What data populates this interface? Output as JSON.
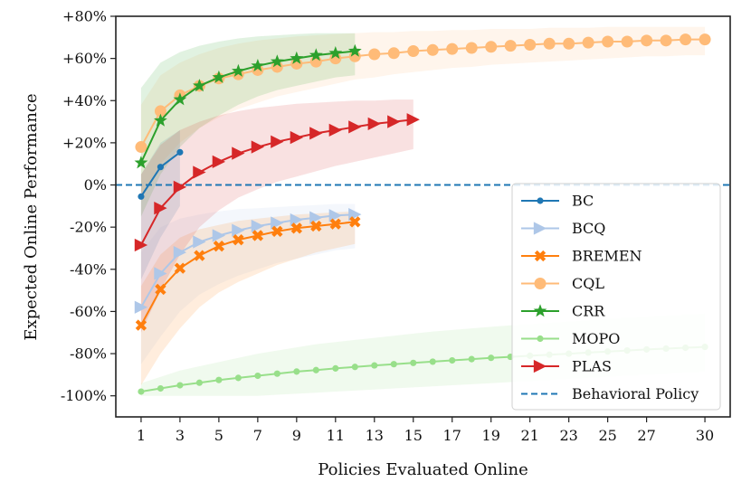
{
  "chart_data": {
    "type": "line",
    "xlabel": "Policies Evaluated Online",
    "ylabel": "Expected Online Performance",
    "xlim": [
      -0.3,
      31.3
    ],
    "ylim": [
      -110,
      80
    ],
    "xticks": [
      1,
      3,
      5,
      7,
      9,
      11,
      13,
      15,
      17,
      19,
      21,
      23,
      25,
      27,
      30
    ],
    "xtick_labels": [
      "1",
      "3",
      "5",
      "7",
      "9",
      "11",
      "13",
      "15",
      "17",
      "19",
      "21",
      "23",
      "25",
      "27",
      "30"
    ],
    "yticks": [
      -100,
      -80,
      -60,
      -40,
      -20,
      0,
      20,
      40,
      60,
      80
    ],
    "ytick_labels": [
      "-100%",
      "-80%",
      "-60%",
      "-40%",
      "-20%",
      "0%",
      "+20%",
      "+40%",
      "+60%",
      "+80%"
    ],
    "baseline": {
      "name": "Behavioral Policy",
      "value": 0,
      "color": "#1f77b4"
    },
    "legend_position": "lower-right",
    "series": [
      {
        "name": "BC",
        "color": "#1f77b4",
        "marker": "point",
        "x": [
          1,
          2,
          3
        ],
        "values": [
          -5.5,
          8.5,
          15.5
        ],
        "band_low": [
          -45,
          -25,
          -10
        ],
        "band_high": [
          5,
          20,
          26
        ]
      },
      {
        "name": "BCQ",
        "color": "#aec7e8",
        "marker": "triangle-right",
        "x": [
          1,
          2,
          3,
          4,
          5,
          6,
          7,
          8,
          9,
          10,
          11,
          12
        ],
        "values": [
          -58,
          -42,
          -32,
          -27,
          -24,
          -21.5,
          -19.5,
          -18,
          -16.5,
          -15.5,
          -14.5,
          -14
        ],
        "band_low": [
          -85,
          -72,
          -60,
          -52,
          -47,
          -43,
          -40,
          -37,
          -35,
          -33,
          -31,
          -30
        ],
        "band_high": [
          -32,
          -20,
          -16,
          -14,
          -12.5,
          -11.5,
          -11,
          -10.5,
          -10,
          -9.5,
          -9,
          -9
        ]
      },
      {
        "name": "BREMEN",
        "color": "#ff7f0e",
        "marker": "x-filled",
        "x": [
          1,
          2,
          3,
          4,
          5,
          6,
          7,
          8,
          9,
          10,
          11,
          12
        ],
        "values": [
          -66.5,
          -49.5,
          -39.5,
          -33.5,
          -29,
          -26,
          -24,
          -22,
          -20.5,
          -19.5,
          -18.5,
          -17.5
        ],
        "band_low": [
          -95,
          -80,
          -68,
          -58,
          -51,
          -46,
          -42,
          -38,
          -35,
          -32,
          -30,
          -28
        ],
        "band_high": [
          -48,
          -33,
          -25,
          -21,
          -19,
          -17,
          -16,
          -15,
          -14,
          -13.5,
          -13,
          -12.5
        ]
      },
      {
        "name": "CQL",
        "color": "#ffbb78",
        "marker": "circle",
        "x": [
          1,
          2,
          3,
          4,
          5,
          6,
          7,
          8,
          9,
          10,
          11,
          12,
          13,
          14,
          15,
          16,
          17,
          18,
          19,
          20,
          21,
          22,
          23,
          24,
          25,
          26,
          27,
          28,
          29,
          30
        ],
        "values": [
          18,
          35,
          42.5,
          47,
          50.5,
          52.5,
          54.5,
          56,
          57.5,
          58.5,
          60,
          61,
          62,
          62.5,
          63.5,
          64,
          64.5,
          65,
          65.5,
          66,
          66.5,
          67,
          67,
          67.5,
          68,
          68,
          68.5,
          68.5,
          69,
          69
        ],
        "band_low": [
          -5,
          10,
          20,
          27,
          32,
          36,
          39,
          42,
          44,
          46,
          48,
          50,
          51,
          52.5,
          53.5,
          54.5,
          55.5,
          56,
          57,
          57.5,
          58,
          58.5,
          59,
          59.5,
          60,
          60.5,
          61,
          61,
          61.5,
          61.5
        ],
        "band_high": [
          38,
          52,
          58,
          62,
          65,
          67,
          68.5,
          69.5,
          70.5,
          71,
          71.5,
          72,
          72.5,
          72.5,
          73,
          73,
          73.5,
          73.5,
          74,
          74,
          74,
          74.5,
          74.5,
          74.5,
          75,
          75,
          75,
          75,
          75,
          75
        ]
      },
      {
        "name": "CRR",
        "color": "#2ca02c",
        "marker": "star",
        "x": [
          1,
          2,
          3,
          4,
          5,
          6,
          7,
          8,
          9,
          10,
          11,
          12
        ],
        "values": [
          10.5,
          30.5,
          40.5,
          47,
          51,
          54,
          56.5,
          58.5,
          60,
          61.5,
          62.5,
          63.5
        ],
        "band_low": [
          -15,
          5,
          18,
          27,
          33,
          38,
          42,
          45,
          47,
          49,
          51,
          52
        ],
        "band_high": [
          46,
          58,
          63,
          66,
          68,
          69.5,
          70.5,
          71,
          71.5,
          72,
          72,
          72
        ]
      },
      {
        "name": "MOPO",
        "color": "#98df8a",
        "marker": "point",
        "x": [
          1,
          2,
          3,
          4,
          5,
          6,
          7,
          8,
          9,
          10,
          11,
          12,
          13,
          14,
          15,
          16,
          17,
          18,
          19,
          20,
          21,
          22,
          23,
          24,
          25,
          26,
          27,
          28,
          29,
          30
        ],
        "values": [
          -98,
          -96.5,
          -95,
          -93.8,
          -92.5,
          -91.5,
          -90.5,
          -89.5,
          -88.5,
          -87.8,
          -87,
          -86.3,
          -85.6,
          -85,
          -84.4,
          -83.8,
          -83.2,
          -82.6,
          -82,
          -81.5,
          -81,
          -80.5,
          -80,
          -79.5,
          -79,
          -78.5,
          -78,
          -77.6,
          -77.2,
          -76.8
        ],
        "band_low": [
          -100,
          -100,
          -100,
          -100,
          -100,
          -100,
          -100,
          -99.5,
          -99,
          -98.5,
          -98,
          -97.5,
          -97,
          -96.5,
          -96,
          -95.5,
          -95,
          -94.5,
          -94,
          -93.5,
          -93,
          -92.5,
          -92,
          -91.5,
          -91,
          -90.5,
          -90,
          -89.5,
          -89,
          -88.5
        ],
        "band_high": [
          -94,
          -91,
          -88,
          -86,
          -84,
          -82,
          -80,
          -78.5,
          -77,
          -75.5,
          -74.5,
          -73.5,
          -72.5,
          -71.5,
          -70.5,
          -69.5,
          -68.8,
          -68,
          -67.3,
          -66.6,
          -66,
          -65.4,
          -64.8,
          -64.2,
          -63.6,
          -63,
          -62.5,
          -62,
          -61.5,
          -61
        ]
      },
      {
        "name": "PLAS",
        "color": "#d62728",
        "marker": "triangle-right",
        "x": [
          1,
          2,
          3,
          4,
          5,
          6,
          7,
          8,
          9,
          10,
          11,
          12,
          13,
          14,
          15
        ],
        "values": [
          -28.5,
          -11,
          -1,
          6,
          11,
          15,
          18,
          20.5,
          22.5,
          24.5,
          26,
          27.5,
          29,
          30,
          31
        ],
        "band_low": [
          -70,
          -50,
          -33,
          -20,
          -12,
          -6,
          -2,
          1.5,
          4,
          6.5,
          9,
          11,
          13,
          15,
          17
        ],
        "band_high": [
          5,
          19,
          26,
          30,
          33,
          35,
          36.5,
          37.5,
          38.5,
          39,
          39.5,
          40,
          40,
          40.5,
          40.5
        ]
      }
    ]
  }
}
